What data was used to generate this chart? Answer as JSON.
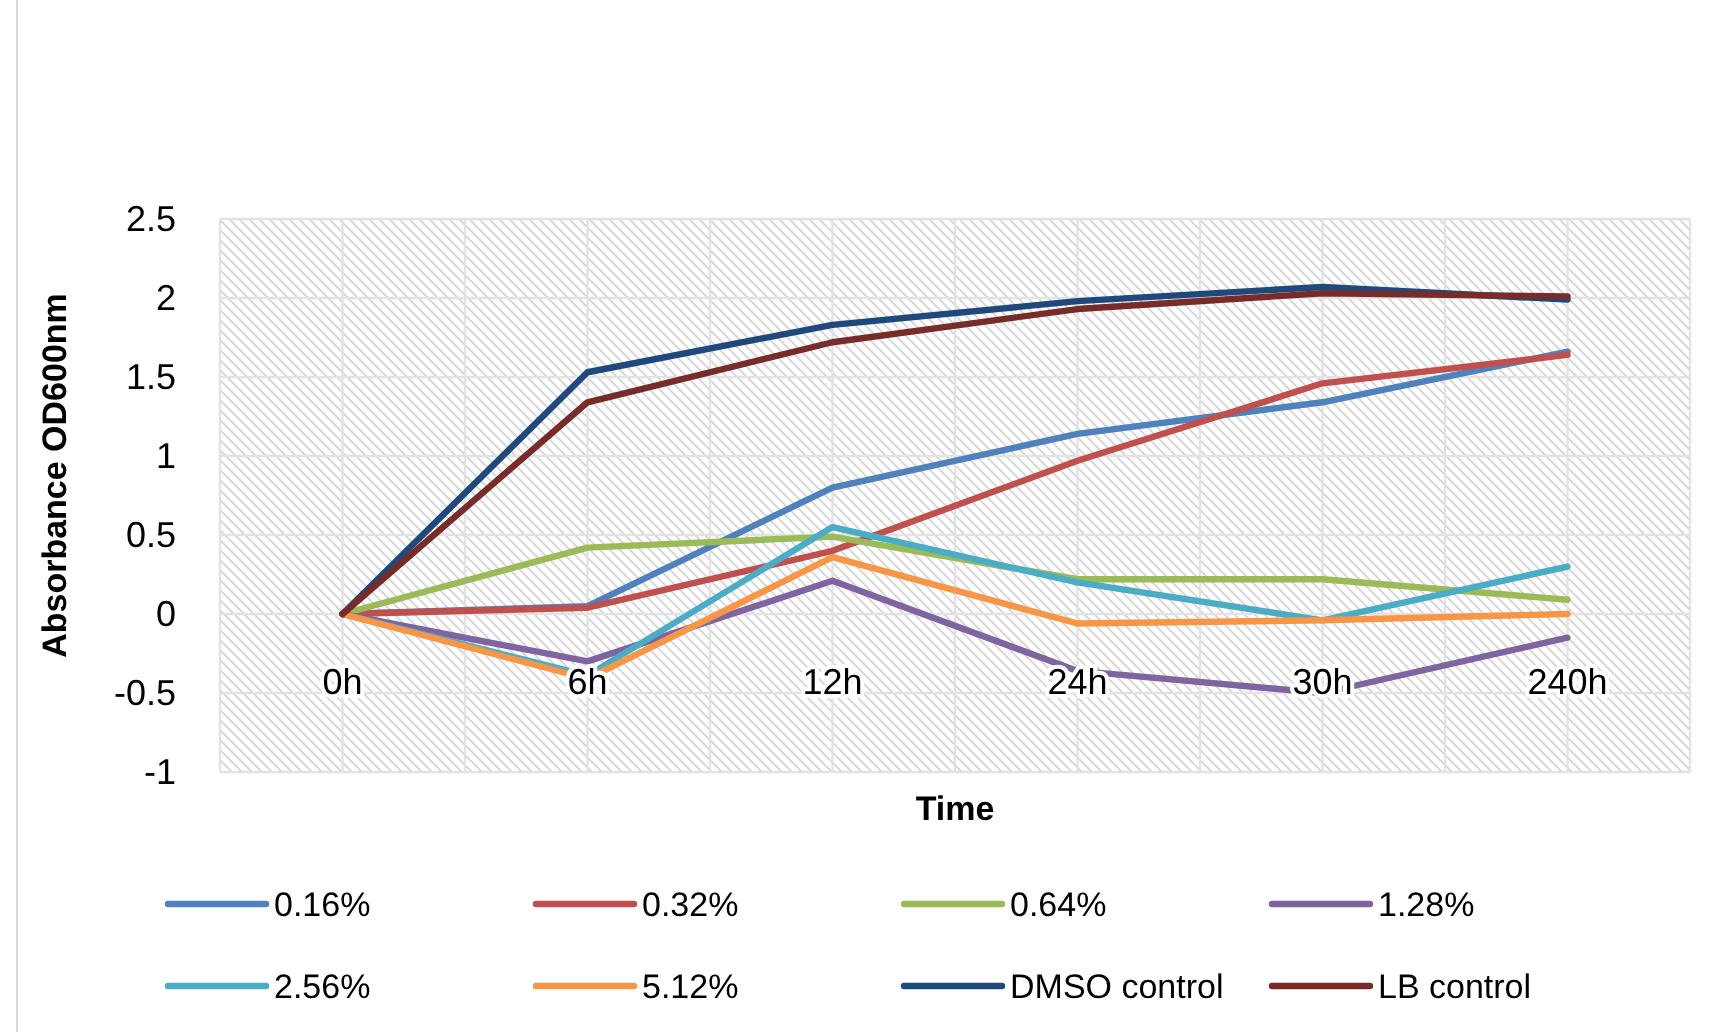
{
  "chart_data": {
    "type": "line",
    "xlabel": "Time",
    "ylabel": "Absorbance OD600nm",
    "categories": [
      "0h",
      "6h",
      "12h",
      "24h",
      "30h",
      "240h"
    ],
    "ylim": [
      -1,
      2.5
    ],
    "yticks": [
      -1,
      -0.5,
      0,
      0.5,
      1,
      1.5,
      2,
      2.5
    ],
    "grid": true,
    "legend": "bottom",
    "series": [
      {
        "name": "0.16%",
        "color": "#4f81bd",
        "values": [
          0,
          0.05,
          0.8,
          1.14,
          1.34,
          1.66
        ]
      },
      {
        "name": "0.32%",
        "color": "#c0504d",
        "values": [
          0,
          0.04,
          0.4,
          0.97,
          1.46,
          1.64
        ]
      },
      {
        "name": "0.64%",
        "color": "#9bbb59",
        "values": [
          0,
          0.42,
          0.49,
          0.22,
          0.22,
          0.09
        ]
      },
      {
        "name": "1.28%",
        "color": "#8064a2",
        "values": [
          0,
          -0.3,
          0.21,
          -0.36,
          -0.5,
          -0.15
        ]
      },
      {
        "name": "2.56%",
        "color": "#4bacc6",
        "values": [
          0,
          -0.39,
          0.55,
          0.2,
          -0.04,
          0.3
        ]
      },
      {
        "name": "5.12%",
        "color": "#f79646",
        "values": [
          0,
          -0.41,
          0.36,
          -0.06,
          -0.04,
          0
        ]
      },
      {
        "name": "DMSO control",
        "color": "#1f497d",
        "values": [
          0,
          1.53,
          1.83,
          1.98,
          2.07,
          1.99
        ]
      },
      {
        "name": "LB control",
        "color": "#772c2a",
        "values": [
          0,
          1.34,
          1.72,
          1.93,
          2.03,
          2.01
        ]
      }
    ]
  }
}
